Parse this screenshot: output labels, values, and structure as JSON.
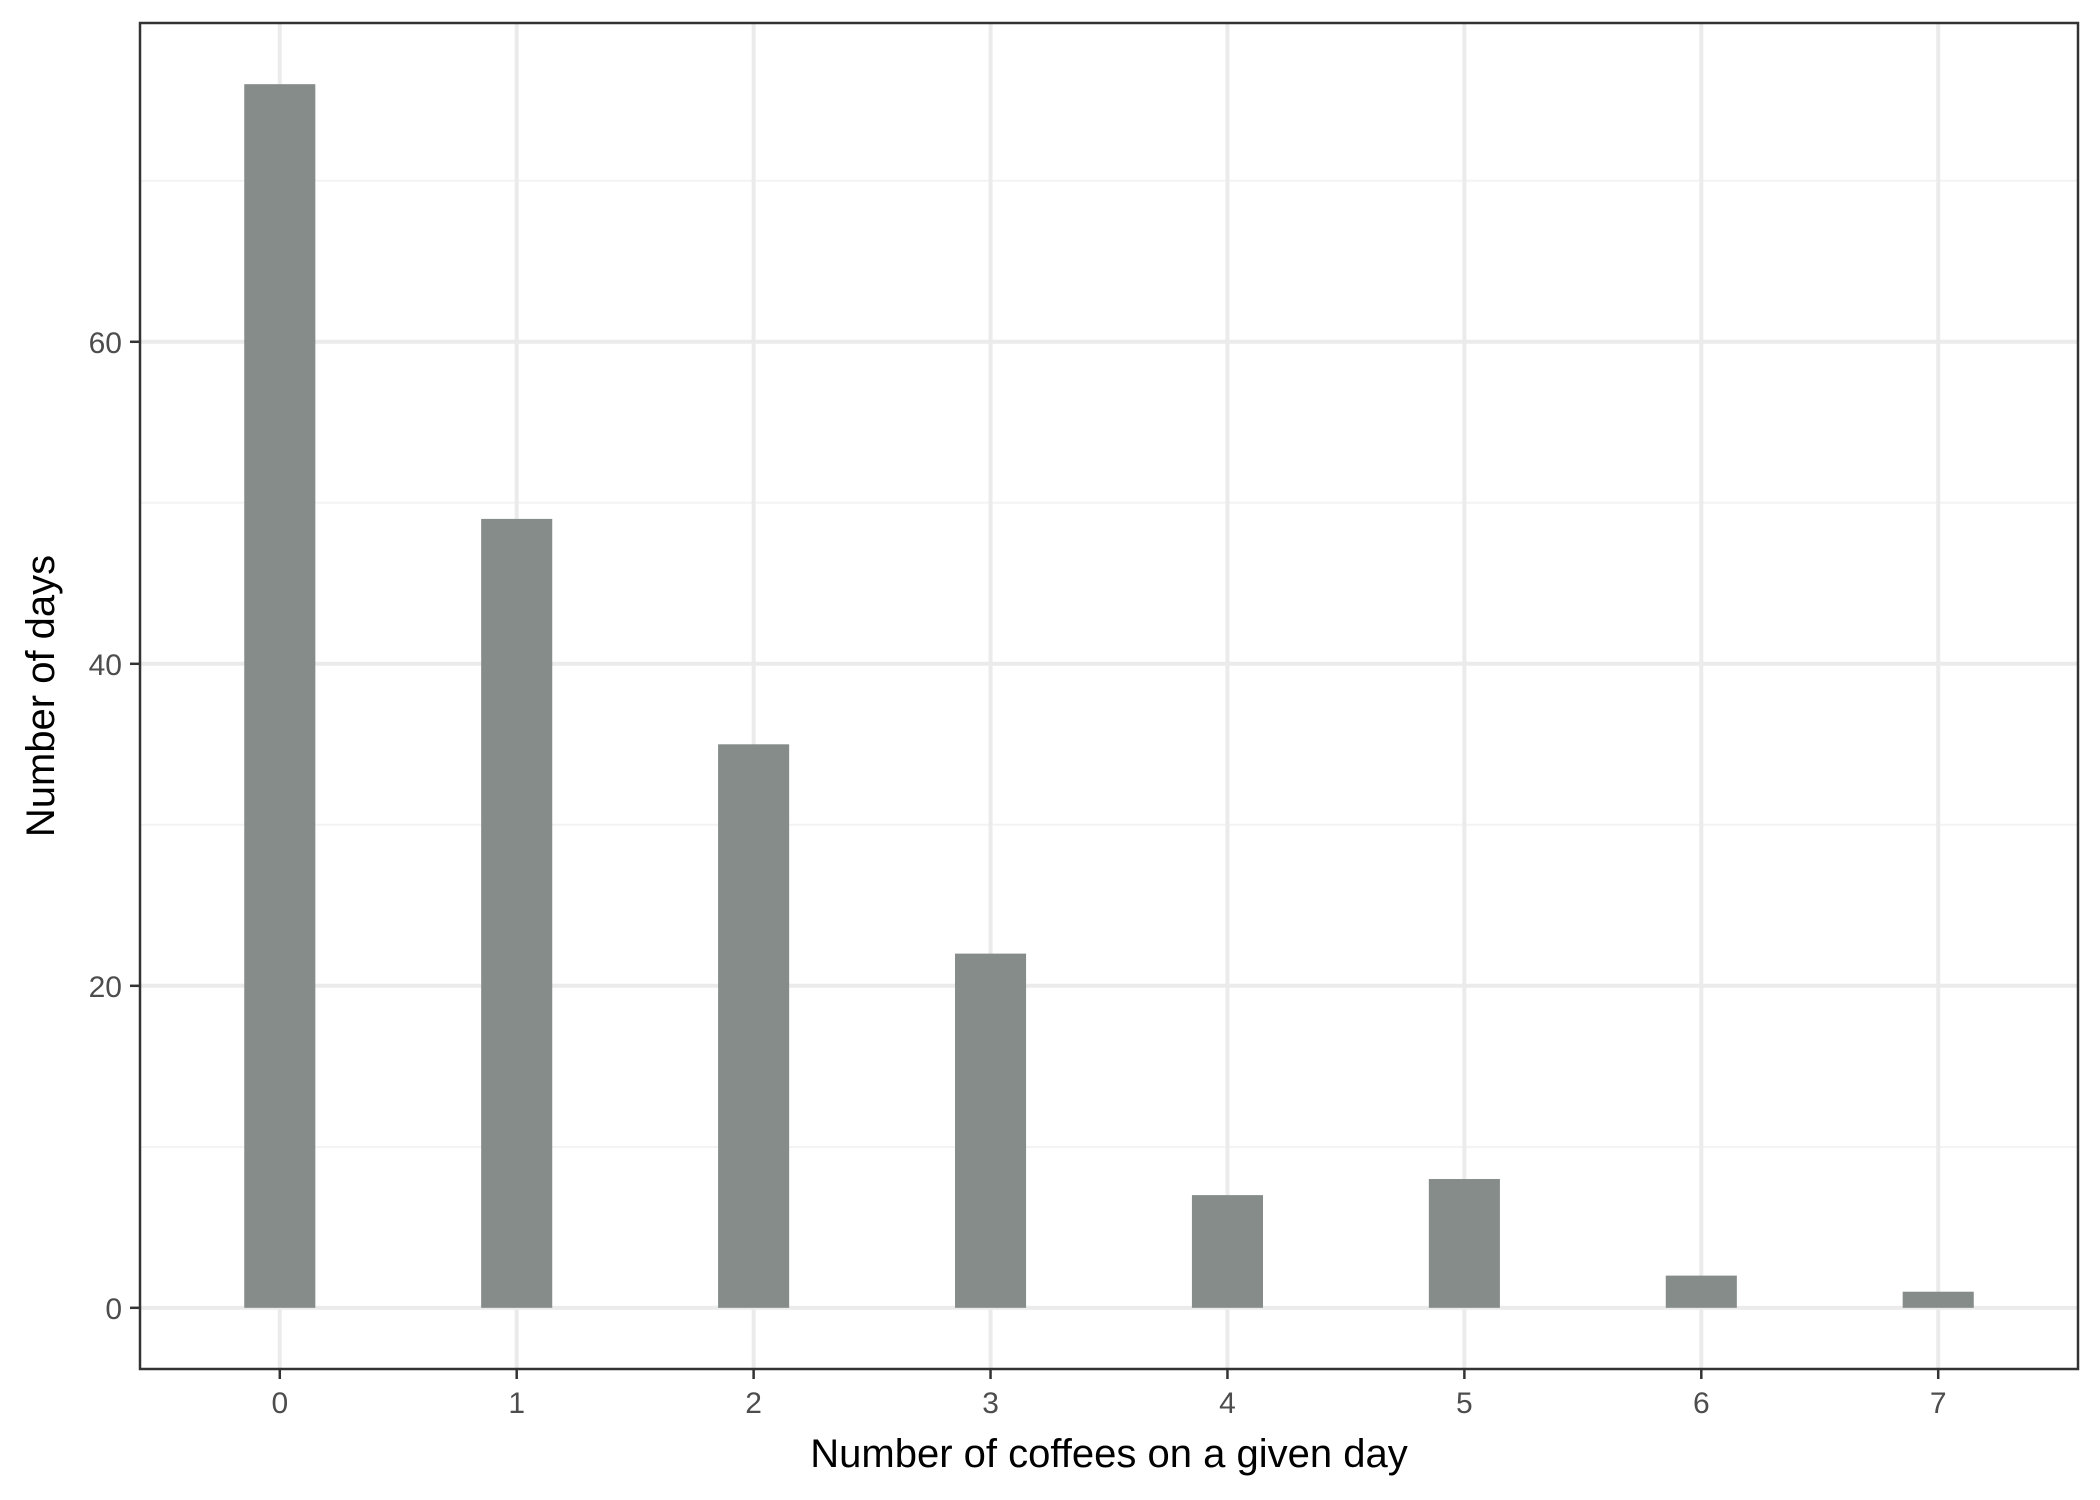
{
  "chart_data": {
    "type": "bar",
    "categories": [
      "0",
      "1",
      "2",
      "3",
      "4",
      "5",
      "6",
      "7"
    ],
    "values": [
      76,
      49,
      35,
      22,
      7,
      8,
      2,
      1
    ],
    "title": "",
    "xlabel": "Number of coffees on a given day",
    "ylabel": "Number of days",
    "xlim": [
      -0.59,
      7.59
    ],
    "ylim": [
      -3.8,
      79.8
    ],
    "y_ticks": [
      0,
      20,
      40,
      60
    ],
    "y_minor_ticks": [
      10,
      30,
      50,
      70
    ],
    "grid": true,
    "legend": "none",
    "colors": {
      "bar": "#858c8a",
      "grid_major": "#ebebeb",
      "grid_minor": "#f3f3f3",
      "panel_border": "#333333",
      "tick_label": "#4d4d4d"
    }
  }
}
